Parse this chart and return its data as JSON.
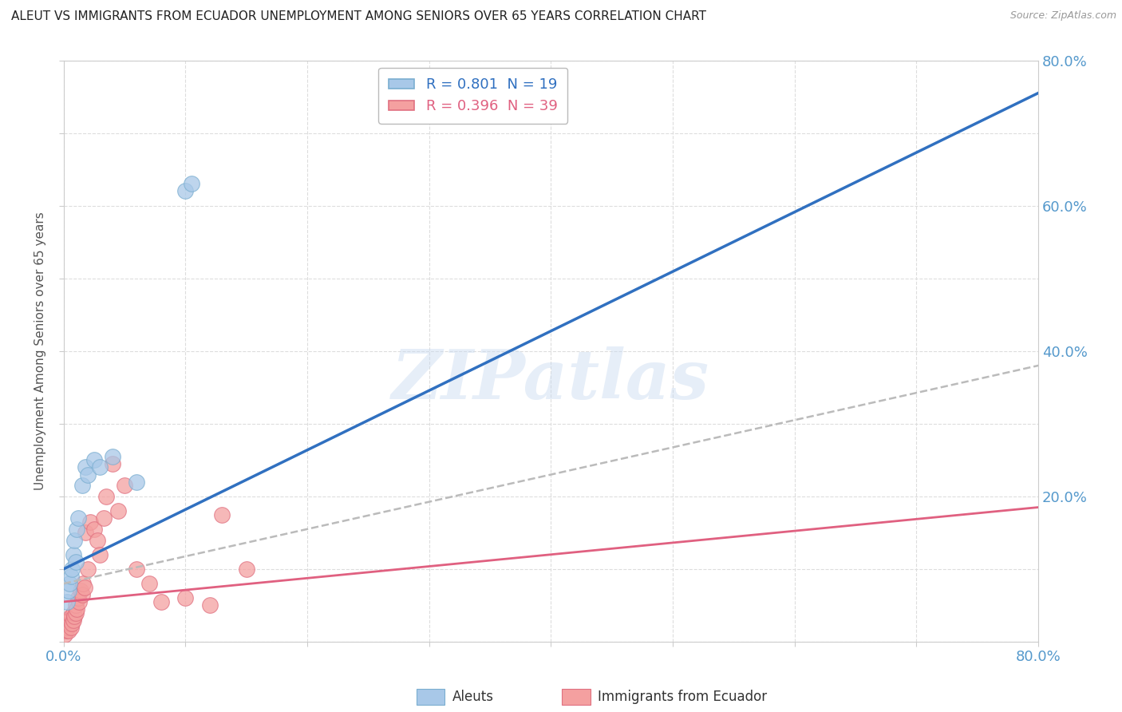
{
  "title": "ALEUT VS IMMIGRANTS FROM ECUADOR UNEMPLOYMENT AMONG SENIORS OVER 65 YEARS CORRELATION CHART",
  "source": "Source: ZipAtlas.com",
  "ylabel": "Unemployment Among Seniors over 65 years",
  "color_aleut": "#a8c8e8",
  "color_ecuador": "#f4a0a0",
  "color_aleut_edge": "#7aaed0",
  "color_ecuador_edge": "#e07080",
  "color_aleut_line": "#3070c0",
  "color_ecuador_line": "#e06080",
  "color_dashed": "#bbbbbb",
  "background_color": "#ffffff",
  "watermark": "ZIPatlas",
  "aleut_x": [
    0.003,
    0.004,
    0.005,
    0.006,
    0.007,
    0.008,
    0.009,
    0.01,
    0.011,
    0.012,
    0.015,
    0.018,
    0.02,
    0.025,
    0.03,
    0.04,
    0.06,
    0.1,
    0.105
  ],
  "aleut_y": [
    0.055,
    0.07,
    0.08,
    0.09,
    0.1,
    0.12,
    0.14,
    0.11,
    0.155,
    0.17,
    0.215,
    0.24,
    0.23,
    0.25,
    0.24,
    0.255,
    0.22,
    0.62,
    0.63
  ],
  "ecuador_x": [
    0.001,
    0.002,
    0.003,
    0.004,
    0.005,
    0.005,
    0.006,
    0.006,
    0.007,
    0.008,
    0.008,
    0.009,
    0.01,
    0.01,
    0.011,
    0.012,
    0.013,
    0.014,
    0.015,
    0.016,
    0.017,
    0.018,
    0.02,
    0.022,
    0.025,
    0.028,
    0.03,
    0.033,
    0.035,
    0.04,
    0.045,
    0.05,
    0.06,
    0.07,
    0.08,
    0.1,
    0.12,
    0.13,
    0.15
  ],
  "ecuador_y": [
    0.01,
    0.015,
    0.02,
    0.015,
    0.025,
    0.03,
    0.02,
    0.035,
    0.025,
    0.03,
    0.04,
    0.035,
    0.04,
    0.05,
    0.045,
    0.06,
    0.055,
    0.07,
    0.065,
    0.08,
    0.075,
    0.15,
    0.1,
    0.165,
    0.155,
    0.14,
    0.12,
    0.17,
    0.2,
    0.245,
    0.18,
    0.215,
    0.1,
    0.08,
    0.055,
    0.06,
    0.05,
    0.175,
    0.1
  ],
  "aleut_line_x": [
    0.0,
    0.8
  ],
  "aleut_line_y": [
    0.1,
    0.755
  ],
  "ecuador_line_x": [
    0.0,
    0.8
  ],
  "ecuador_line_y": [
    0.055,
    0.185
  ],
  "dashed_line_x": [
    0.0,
    0.8
  ],
  "dashed_line_y": [
    0.08,
    0.38
  ],
  "xlim": [
    0.0,
    0.8
  ],
  "ylim": [
    0.0,
    0.8
  ],
  "xtick_positions": [
    0.0,
    0.1,
    0.2,
    0.3,
    0.4,
    0.5,
    0.6,
    0.7,
    0.8
  ],
  "ytick_positions": [
    0.0,
    0.1,
    0.2,
    0.3,
    0.4,
    0.5,
    0.6,
    0.7,
    0.8
  ],
  "xticklabels_left": "0.0%",
  "xticklabels_right": "80.0%",
  "ytick_20": "20.0%",
  "ytick_40": "40.0%",
  "ytick_60": "60.0%",
  "ytick_80": "80.0%",
  "legend1_text_R": "R = 0.801",
  "legend1_text_N": "N = 19",
  "legend2_text_R": "R = 0.396",
  "legend2_text_N": "N = 39",
  "legend1_color": "#3070c0",
  "legend2_color": "#e06080",
  "bottom_label1": "Aleuts",
  "bottom_label2": "Immigrants from Ecuador"
}
